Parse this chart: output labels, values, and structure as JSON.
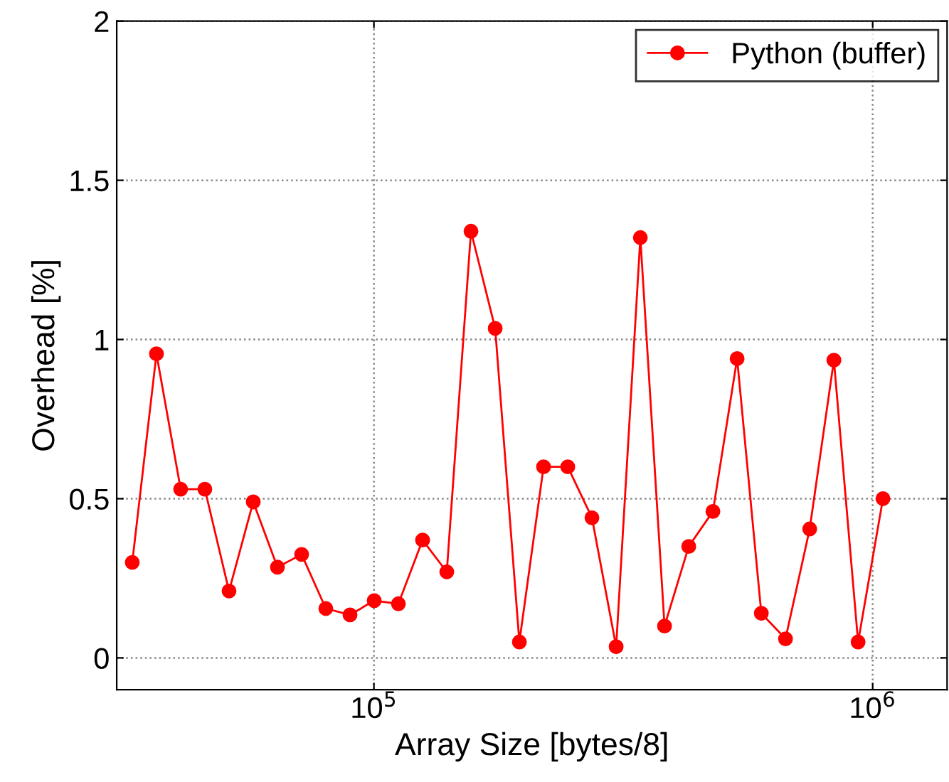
{
  "chart_data": {
    "type": "line",
    "xlabel": "Array Size [bytes/8]",
    "ylabel": "Overhead [%]",
    "x": [
      32768,
      36641,
      40970,
      45812,
      51226,
      57280,
      64049,
      71618,
      80081,
      89545,
      100127,
      111960,
      125191,
      139985,
      156528,
      175025,
      195709,
      218837,
      244698,
      273615,
      305950,
      342106,
      382535,
      427741,
      478289,
      534811,
      598013,
      668683,
      747704,
      836064,
      934865,
      1048576
    ],
    "series": [
      {
        "name": "Python (buffer)",
        "color": "#ff0000",
        "values": [
          0.3,
          0.955,
          0.53,
          0.53,
          0.21,
          0.49,
          0.285,
          0.325,
          0.155,
          0.135,
          0.18,
          0.17,
          0.37,
          0.27,
          1.34,
          1.035,
          0.05,
          0.6,
          0.6,
          0.44,
          0.035,
          1.32,
          0.1,
          0.35,
          0.46,
          0.94,
          0.14,
          0.06,
          0.405,
          0.935,
          0.05,
          0.5
        ]
      }
    ],
    "log": "x",
    "xlim": [
      30500,
      1410000
    ],
    "xticks": [
      {
        "value": 100000,
        "label": "10$^{5}$"
      },
      {
        "value": 1000000,
        "label": "10$^{6}$"
      }
    ],
    "ylim": [
      -0.1,
      2
    ],
    "yticks": [
      0,
      0.5,
      1,
      1.5,
      2
    ],
    "grid": true,
    "legend": "top right",
    "marker": "circle",
    "line_style": "solid"
  }
}
